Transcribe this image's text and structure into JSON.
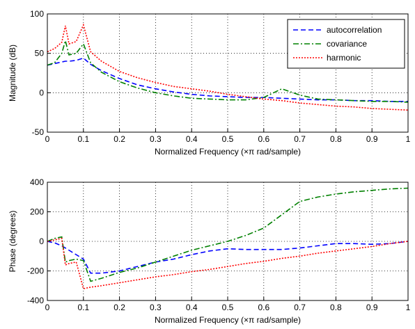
{
  "chart_data": [
    {
      "type": "line",
      "xlabel": "Normalized Frequency  (×π rad/sample)",
      "ylabel": "Magnitude (dB)",
      "x": [
        0,
        0.02,
        0.04,
        0.05,
        0.06,
        0.08,
        0.1,
        0.12,
        0.15,
        0.2,
        0.25,
        0.3,
        0.35,
        0.4,
        0.45,
        0.5,
        0.55,
        0.6,
        0.65,
        0.7,
        0.75,
        0.8,
        0.85,
        0.9,
        0.95,
        1
      ],
      "xlim": [
        0,
        1
      ],
      "xticks": [
        0,
        0.1,
        0.2,
        0.3,
        0.4,
        0.5,
        0.6,
        0.7,
        0.8,
        0.9,
        1
      ],
      "ylim": [
        -50,
        100
      ],
      "yticks": [
        -50,
        0,
        50,
        100
      ],
      "grid": true,
      "legend": "northeast",
      "series": [
        {
          "name": "autocorrelation",
          "color": "#0000ff",
          "linestyle": "dashed",
          "values": [
            35,
            37,
            39,
            40,
            40,
            41,
            44,
            36,
            28,
            18,
            10,
            5,
            1,
            -2,
            -4,
            -5,
            -6,
            -6,
            -7,
            -8,
            -9,
            -9,
            -10,
            -10,
            -11,
            -11
          ]
        },
        {
          "name": "covariance",
          "color": "#008000",
          "linestyle": "dashdot",
          "values": [
            35,
            38,
            50,
            66,
            48,
            50,
            62,
            38,
            26,
            14,
            6,
            0,
            -4,
            -7,
            -8,
            -9,
            -9,
            -6,
            5,
            -3,
            -8,
            -9,
            -10,
            -11,
            -11,
            -12
          ]
        },
        {
          "name": "harmonic",
          "color": "#ff0000",
          "linestyle": "dotted",
          "values": [
            52,
            56,
            64,
            85,
            62,
            65,
            86,
            52,
            40,
            27,
            19,
            13,
            8,
            5,
            2,
            -2,
            -5,
            -8,
            -10,
            -13,
            -15,
            -17,
            -18,
            -20,
            -21,
            -22
          ]
        }
      ]
    },
    {
      "type": "line",
      "xlabel": "Normalized Frequency  (×π rad/sample)",
      "ylabel": "Phase (degrees)",
      "x": [
        0,
        0.02,
        0.04,
        0.05,
        0.06,
        0.08,
        0.1,
        0.12,
        0.15,
        0.2,
        0.25,
        0.3,
        0.35,
        0.4,
        0.45,
        0.5,
        0.55,
        0.6,
        0.65,
        0.7,
        0.75,
        0.8,
        0.85,
        0.9,
        0.95,
        1
      ],
      "xlim": [
        0,
        1
      ],
      "xticks": [
        0,
        0.1,
        0.2,
        0.3,
        0.4,
        0.5,
        0.6,
        0.7,
        0.8,
        0.9,
        1
      ],
      "ylim": [
        -400,
        400
      ],
      "yticks": [
        -400,
        -200,
        0,
        200,
        400
      ],
      "grid": true,
      "series": [
        {
          "name": "autocorrelation",
          "color": "#0000ff",
          "linestyle": "dashed",
          "values": [
            0,
            -10,
            -30,
            -45,
            -60,
            -90,
            -120,
            -215,
            -215,
            -200,
            -170,
            -140,
            -120,
            -90,
            -65,
            -50,
            -55,
            -55,
            -55,
            -45,
            -30,
            -15,
            -15,
            -20,
            -15,
            0
          ]
        },
        {
          "name": "covariance",
          "color": "#008000",
          "linestyle": "dashdot",
          "values": [
            0,
            20,
            30,
            -140,
            -130,
            -120,
            -130,
            -270,
            -250,
            -210,
            -180,
            -140,
            -100,
            -60,
            -30,
            0,
            40,
            90,
            180,
            270,
            300,
            320,
            335,
            345,
            355,
            360
          ]
        },
        {
          "name": "harmonic",
          "color": "#ff0000",
          "linestyle": "dotted",
          "values": [
            0,
            10,
            20,
            -160,
            -150,
            -140,
            -320,
            -310,
            -300,
            -280,
            -260,
            -240,
            -225,
            -205,
            -190,
            -170,
            -150,
            -135,
            -115,
            -100,
            -80,
            -65,
            -50,
            -35,
            -15,
            0
          ]
        }
      ]
    }
  ]
}
